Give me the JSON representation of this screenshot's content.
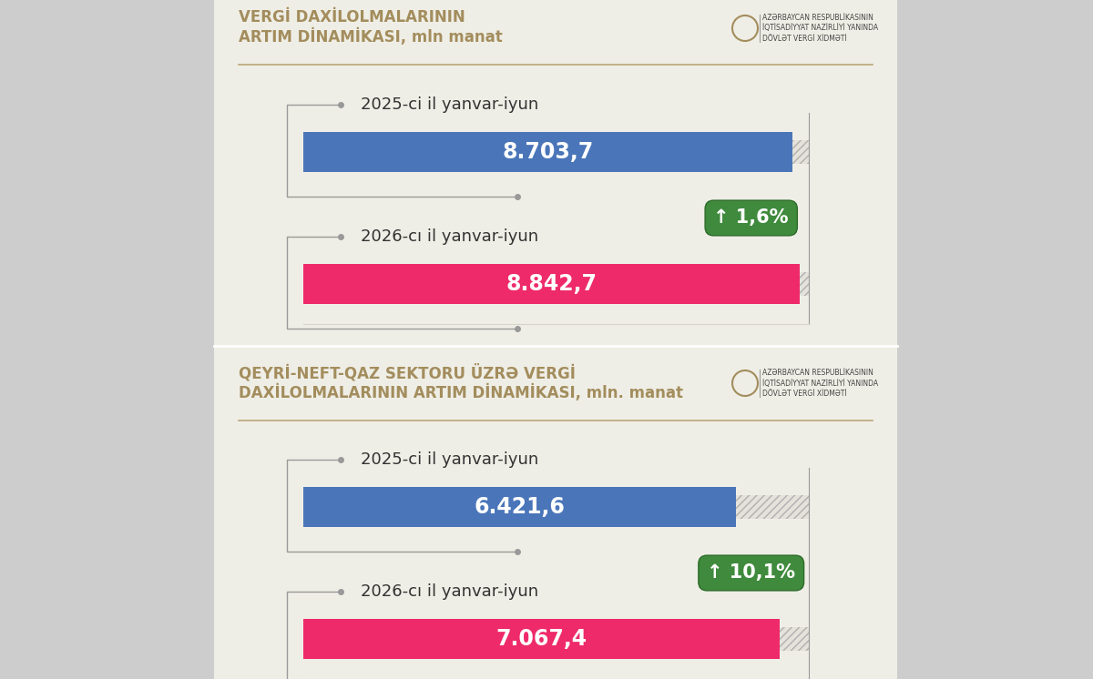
{
  "chart_data": [
    {
      "type": "bar",
      "orientation": "horizontal",
      "title": "VERGİ DAXİLOLMALARININ\nARTIM DİNAMİKASI, mln manat",
      "subtitle": "AZƏRBAYCAN RESPUBLİKASININ\nİQTİSADİYYAT NAZİRLİYİ YANINDA\nDÖVLƏT VERGİ XİDMƏTİ",
      "categories": [
        "2025-ci il yanvar-iyun",
        "2026-cı il yanvar-iyun"
      ],
      "values": [
        8703.7,
        8842.7
      ],
      "value_labels": [
        "8.703,7",
        "8.842,7"
      ],
      "colors": [
        "#4a76b9",
        "#ee2a6b"
      ],
      "annotation": "↑ 1,6%",
      "xlim": [
        0,
        9000
      ],
      "data_labels": true,
      "tick_labels": false,
      "grid": false
    },
    {
      "type": "bar",
      "orientation": "horizontal",
      "title": "QEYRİ-NEFT-QAZ SEKTORU ÜZRƏ VERGİ\nDAXİLOLMALARININ ARTIM DİNAMİKASI, mln. manat",
      "subtitle": "AZƏRBAYCAN RESPUBLİKASININ\nİQTİSADİYYAT NAZİRLİYİ YANINDA\nDÖVLƏT VERGİ XİDMƏTİ",
      "categories": [
        "2025-ci il yanvar-iyun",
        "2026-cı il yanvar-iyun"
      ],
      "values": [
        6421.6,
        7067.4
      ],
      "value_labels": [
        "6.421,6",
        "7.067,4"
      ],
      "colors": [
        "#4a76b9",
        "#ee2a6b"
      ],
      "annotation": "↑ 10,1%",
      "xlim": [
        0,
        7500
      ],
      "data_labels": true,
      "tick_labels": false,
      "grid": false
    }
  ]
}
